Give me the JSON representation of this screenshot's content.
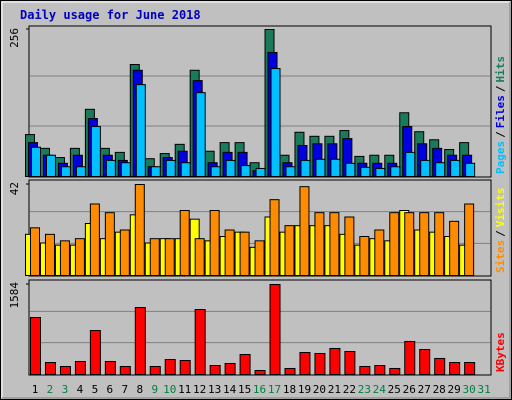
{
  "chart_data": [
    {
      "type": "bar",
      "title": "Daily usage for June 2018",
      "ylim": [
        0,
        256
      ],
      "yticks": [
        256
      ],
      "legend_separator": "/",
      "series": [
        {
          "name": "Hits",
          "color": "#1a7a5a",
          "values": [
            73,
            49,
            33,
            49,
            117,
            49,
            42,
            195,
            31,
            40,
            56,
            185,
            44,
            59,
            59,
            24,
            256,
            37,
            77,
            70,
            70,
            80,
            35,
            37,
            37,
            111,
            78,
            64,
            47,
            59,
            null
          ]
        },
        {
          "name": "Files",
          "color": "#0000e0",
          "values": [
            59,
            37,
            23,
            37,
            101,
            37,
            28,
            185,
            17,
            33,
            44,
            167,
            24,
            42,
            42,
            10,
            216,
            24,
            54,
            57,
            57,
            66,
            23,
            23,
            23,
            87,
            57,
            49,
            37,
            37,
            null
          ]
        },
        {
          "name": "Pages",
          "color": "#00c0ff",
          "values": [
            51,
            37,
            17,
            17,
            87,
            28,
            24,
            160,
            17,
            28,
            24,
            146,
            17,
            28,
            19,
            14,
            188,
            17,
            28,
            30,
            30,
            23,
            16,
            14,
            17,
            42,
            28,
            24,
            28,
            23,
            null
          ]
        }
      ]
    },
    {
      "type": "bar",
      "ylim": [
        0,
        42
      ],
      "yticks": [
        42
      ],
      "legend_separator": "/",
      "series": [
        {
          "name": "Visits",
          "color": "#ffff00",
          "values": [
            19,
            15,
            14,
            14,
            24,
            17,
            20,
            28,
            15,
            17,
            17,
            26,
            16,
            18,
            20,
            13,
            27,
            20,
            23,
            23,
            23,
            19,
            14,
            17,
            16,
            30,
            21,
            20,
            18,
            14,
            null
          ]
        },
        {
          "name": "Sites",
          "color": "#ff8c00",
          "values": [
            22,
            19,
            16,
            17,
            33,
            29,
            21,
            42,
            17,
            17,
            30,
            17,
            30,
            21,
            20,
            16,
            35,
            23,
            41,
            29,
            29,
            27,
            18,
            21,
            29,
            29,
            29,
            29,
            25,
            33,
            null
          ]
        }
      ]
    },
    {
      "type": "bar",
      "ylim": [
        0,
        1584
      ],
      "yticks": [
        1584
      ],
      "categories": [
        "1",
        "2",
        "3",
        "4",
        "5",
        "6",
        "7",
        "8",
        "9",
        "10",
        "11",
        "12",
        "13",
        "14",
        "15",
        "16",
        "17",
        "18",
        "19",
        "20",
        "21",
        "22",
        "23",
        "24",
        "25",
        "26",
        "27",
        "28",
        "29",
        "30",
        "31"
      ],
      "category_colors": [
        "#000",
        "#008040",
        "#008040",
        "#000",
        "#000",
        "#000",
        "#000",
        "#000",
        "#008040",
        "#008040",
        "#000",
        "#000",
        "#000",
        "#000",
        "#000",
        "#008040",
        "#008040",
        "#000",
        "#000",
        "#000",
        "#000",
        "#000",
        "#008040",
        "#008040",
        "#000",
        "#000",
        "#000",
        "#000",
        "#000",
        "#008040",
        "#008040"
      ],
      "series": [
        {
          "name": "KBytes",
          "color": "#ff0000",
          "values": [
            1003,
            211,
            141,
            229,
            774,
            229,
            141,
            1179,
            141,
            264,
            246,
            1144,
            158,
            194,
            352,
            70,
            1584,
            106,
            387,
            370,
            458,
            405,
            141,
            158,
            106,
            581,
            440,
            282,
            211,
            211,
            null
          ]
        }
      ]
    }
  ]
}
